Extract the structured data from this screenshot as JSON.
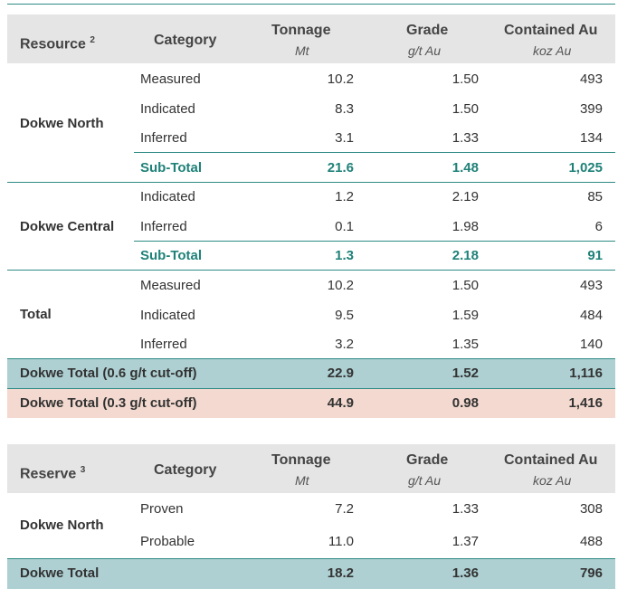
{
  "resource_table": {
    "headers": {
      "resource": "Resource",
      "resource_note": "2",
      "category": "Category",
      "tonnage": "Tonnage",
      "tonnage_unit": "Mt",
      "grade": "Grade",
      "grade_unit": "g/t Au",
      "contained": "Contained Au",
      "contained_unit": "koz Au"
    },
    "groups": [
      {
        "name": "Dokwe North",
        "rows": [
          {
            "category": "Measured",
            "tonnage": "10.2",
            "grade": "1.50",
            "contained": "493"
          },
          {
            "category": "Indicated",
            "tonnage": "8.3",
            "grade": "1.50",
            "contained": "399"
          },
          {
            "category": "Inferred",
            "tonnage": "3.1",
            "grade": "1.33",
            "contained": "134"
          }
        ],
        "subtotal": {
          "label": "Sub-Total",
          "tonnage": "21.6",
          "grade": "1.48",
          "contained": "1,025"
        }
      },
      {
        "name": "Dokwe Central",
        "rows": [
          {
            "category": "Indicated",
            "tonnage": "1.2",
            "grade": "2.19",
            "contained": "85"
          },
          {
            "category": "Inferred",
            "tonnage": "0.1",
            "grade": "1.98",
            "contained": "6"
          }
        ],
        "subtotal": {
          "label": "Sub-Total",
          "tonnage": "1.3",
          "grade": "2.18",
          "contained": "91"
        }
      },
      {
        "name": "Total",
        "rows": [
          {
            "category": "Measured",
            "tonnage": "10.2",
            "grade": "1.50",
            "contained": "493"
          },
          {
            "category": "Indicated",
            "tonnage": "9.5",
            "grade": "1.59",
            "contained": "484"
          },
          {
            "category": "Inferred",
            "tonnage": "3.2",
            "grade": "1.35",
            "contained": "140"
          }
        ]
      }
    ],
    "totals": [
      {
        "label": "Dokwe Total (0.6 g/t cut-off)",
        "tonnage": "22.9",
        "grade": "1.52",
        "contained": "1,116",
        "color": "#aed0d3"
      },
      {
        "label": "Dokwe Total (0.3 g/t cut-off)",
        "tonnage": "44.9",
        "grade": "0.98",
        "contained": "1,416",
        "color": "#f3d9cf"
      }
    ]
  },
  "reserve_table": {
    "headers": {
      "reserve": "Reserve",
      "reserve_note": "3",
      "category": "Category",
      "tonnage": "Tonnage",
      "tonnage_unit": "Mt",
      "grade": "Grade",
      "grade_unit": "g/t Au",
      "contained": "Contained Au",
      "contained_unit": "koz Au"
    },
    "group": {
      "name": "Dokwe North",
      "rows": [
        {
          "category": "Proven",
          "tonnage": "7.2",
          "grade": "1.33",
          "contained": "308"
        },
        {
          "category": "Probable",
          "tonnage": "11.0",
          "grade": "1.37",
          "contained": "488"
        }
      ]
    },
    "total": {
      "label": "Dokwe Total",
      "tonnage": "18.2",
      "grade": "1.36",
      "contained": "796",
      "color": "#aed0d3"
    }
  },
  "colors": {
    "accent": "#2e8b84",
    "subtotal_text": "#1f8178",
    "header_bg": "#e5e5e5"
  }
}
